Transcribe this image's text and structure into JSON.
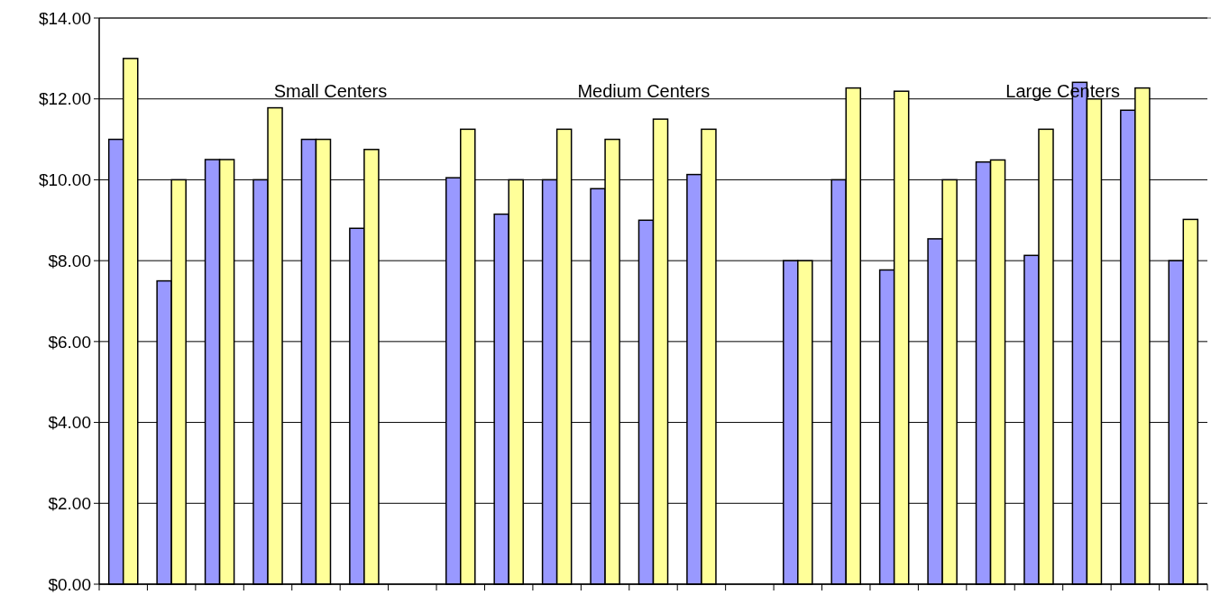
{
  "chart_data": {
    "type": "bar",
    "categories": [
      null,
      null,
      null,
      null,
      null,
      null,
      null,
      null,
      null,
      null,
      null,
      null,
      null,
      null,
      null,
      null,
      null,
      null,
      null,
      null,
      null,
      null,
      null
    ],
    "series": [
      {
        "color": "#9999ff",
        "values": [
          11.0,
          7.5,
          10.5,
          10.0,
          11.0,
          8.8,
          null,
          10.05,
          9.15,
          10.0,
          9.78,
          9.0,
          10.13,
          null,
          8.0,
          10.0,
          7.77,
          8.54,
          10.44,
          8.13,
          12.41,
          11.72,
          8.0
        ]
      },
      {
        "color": "#ffff99",
        "values": [
          13.0,
          10.0,
          10.5,
          11.78,
          11.0,
          10.75,
          null,
          11.25,
          10.0,
          11.25,
          11.0,
          11.5,
          11.25,
          null,
          8.0,
          12.27,
          12.19,
          10.0,
          10.49,
          11.25,
          12.0,
          12.27,
          9.02
        ]
      }
    ],
    "ylim": [
      0,
      14
    ],
    "yticks": [
      {
        "value": 0,
        "label": "$0.00"
      },
      {
        "value": 2,
        "label": "$2.00"
      },
      {
        "value": 4,
        "label": "$4.00"
      },
      {
        "value": 6,
        "label": "$6.00"
      },
      {
        "value": 8,
        "label": "$8.00"
      },
      {
        "value": 10,
        "label": "$10.00"
      },
      {
        "value": 12,
        "label": "$12.00"
      },
      {
        "value": 14,
        "label": "$14.00"
      }
    ],
    "grid": "y",
    "annotations": [
      "Small Centers",
      "Medium Centers",
      "Large Centers"
    ]
  }
}
